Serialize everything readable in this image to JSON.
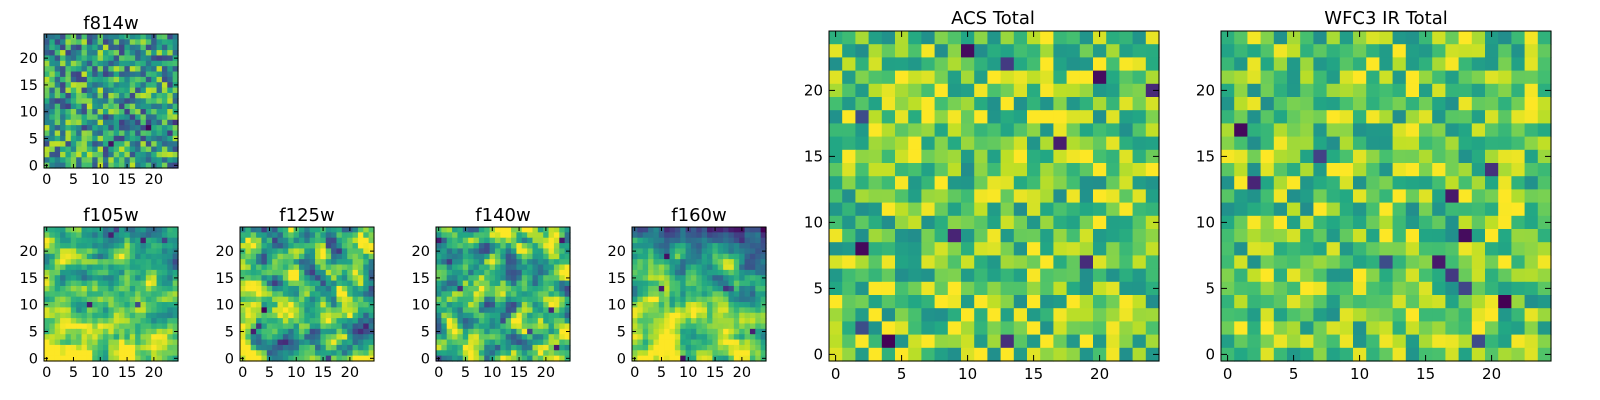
{
  "chart_data": [
    {
      "id": "f814w",
      "type": "heatmap",
      "title": "f814w",
      "xlim": [
        -0.5,
        24.5
      ],
      "ylim": [
        -0.5,
        24.5
      ],
      "xticks": [
        "0",
        "5",
        "10",
        "15",
        "20"
      ],
      "yticks": [
        "0",
        "5",
        "10",
        "15",
        "20"
      ],
      "colormap": "viridis",
      "grid_size": 25,
      "texture_seed": 11,
      "texture": "noisy"
    },
    {
      "id": "f105w",
      "type": "heatmap",
      "title": "f105w",
      "xlim": [
        -0.5,
        24.5
      ],
      "ylim": [
        -0.5,
        24.5
      ],
      "xticks": [
        "0",
        "5",
        "10",
        "15",
        "20"
      ],
      "yticks": [
        "0",
        "5",
        "10",
        "15",
        "20"
      ],
      "colormap": "viridis",
      "grid_size": 25,
      "texture_seed": 23,
      "texture": "bright-bottom-dark-top-right"
    },
    {
      "id": "f125w",
      "type": "heatmap",
      "title": "f125w",
      "xlim": [
        -0.5,
        24.5
      ],
      "ylim": [
        -0.5,
        24.5
      ],
      "xticks": [
        "0",
        "5",
        "10",
        "15",
        "20"
      ],
      "yticks": [
        "0",
        "5",
        "10",
        "15",
        "20"
      ],
      "colormap": "viridis",
      "grid_size": 25,
      "texture_seed": 37,
      "texture": "smooth-mixed"
    },
    {
      "id": "f140w",
      "type": "heatmap",
      "title": "f140w",
      "xlim": [
        -0.5,
        24.5
      ],
      "ylim": [
        -0.5,
        24.5
      ],
      "xticks": [
        "0",
        "5",
        "10",
        "15",
        "20"
      ],
      "yticks": [
        "0",
        "5",
        "10",
        "15",
        "20"
      ],
      "colormap": "viridis",
      "grid_size": 25,
      "texture_seed": 41,
      "texture": "smooth-mixed"
    },
    {
      "id": "f160w",
      "type": "heatmap",
      "title": "f160w",
      "xlim": [
        -0.5,
        24.5
      ],
      "ylim": [
        -0.5,
        24.5
      ],
      "xticks": [
        "0",
        "5",
        "10",
        "15",
        "20"
      ],
      "yticks": [
        "0",
        "5",
        "10",
        "15",
        "20"
      ],
      "colormap": "viridis",
      "grid_size": 25,
      "texture_seed": 53,
      "texture": "dark-top-bright-bottom"
    },
    {
      "id": "acs_total",
      "type": "heatmap",
      "title": "ACS Total",
      "xlim": [
        -0.5,
        24.5
      ],
      "ylim": [
        -0.5,
        24.5
      ],
      "xticks": [
        "0",
        "5",
        "10",
        "15",
        "20"
      ],
      "yticks": [
        "0",
        "5",
        "10",
        "15",
        "20"
      ],
      "colormap": "viridis",
      "grid_size": 25,
      "texture_seed": 67,
      "texture": "uniform-bright"
    },
    {
      "id": "wfc3_ir_total",
      "type": "heatmap",
      "title": "WFC3 IR Total",
      "xlim": [
        -0.5,
        24.5
      ],
      "ylim": [
        -0.5,
        24.5
      ],
      "xticks": [
        "0",
        "5",
        "10",
        "15",
        "20"
      ],
      "yticks": [
        "0",
        "5",
        "10",
        "15",
        "20"
      ],
      "colormap": "viridis",
      "grid_size": 25,
      "texture_seed": 79,
      "texture": "uniform-bright"
    }
  ]
}
